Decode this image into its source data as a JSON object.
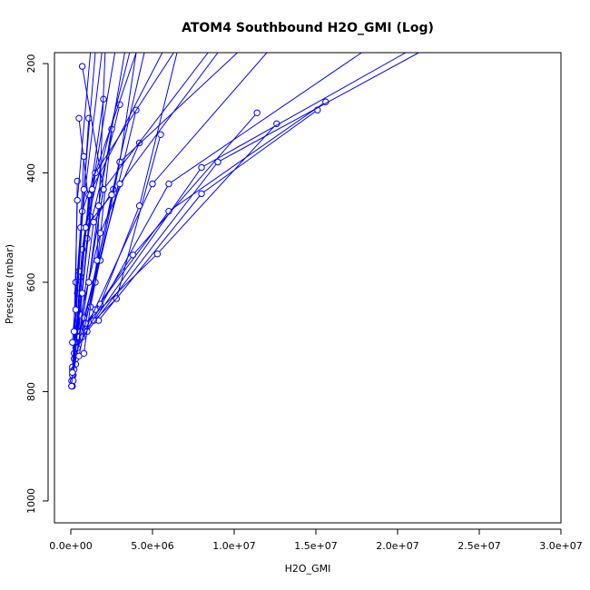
{
  "chart_data": {
    "type": "line",
    "title": "ATOM4 Southbound H2O_GMI (Log)",
    "xlabel": "H2O_GMI",
    "ylabel": "Pressure (mbar)",
    "xlim": [
      -1000000.0,
      30000000.0
    ],
    "ylim": [
      1040,
      180
    ],
    "x_ticks": [
      0,
      5000000,
      10000000,
      15000000,
      20000000,
      25000000,
      30000000
    ],
    "x_tick_labels": [
      "0.0e+00",
      "5.0e+06",
      "1.0e+07",
      "1.5e+07",
      "2.0e+07",
      "2.5e+07",
      "3.0e+07"
    ],
    "y_ticks": [
      200,
      400,
      600,
      800,
      1000
    ],
    "y_tick_labels": [
      "200",
      "400",
      "600",
      "800",
      "1000"
    ],
    "y_axis_reversed": true,
    "grid": false,
    "marker": "open-circle",
    "series_color": "#0000ff",
    "series": [
      {
        "x": [
          50000,
          2000000,
          700000
        ],
        "y": [
          790,
          430,
          205
        ]
      },
      {
        "x": [
          150000,
          1200000,
          500000
        ],
        "y": [
          770,
          480,
          300
        ]
      },
      {
        "x": [
          300000,
          1000000,
          3000000
        ],
        "y": [
          750,
          520,
          275
        ]
      },
      {
        "x": [
          200000,
          1800000,
          4000000
        ],
        "y": [
          730,
          560,
          285
        ]
      },
      {
        "x": [
          100000,
          1500000,
          2500000
        ],
        "y": [
          760,
          600,
          320
        ]
      },
      {
        "x": [
          400000,
          2800000,
          5500000
        ],
        "y": [
          700,
          630,
          330
        ]
      },
      {
        "x": [
          600000,
          3800000,
          11400000
        ],
        "y": [
          690,
          550,
          290
        ]
      },
      {
        "x": [
          900000,
          5300000,
          12600000
        ],
        "y": [
          675,
          548,
          310
        ]
      },
      {
        "x": [
          1700000,
          8000000,
          15100000
        ],
        "y": [
          670,
          438,
          285
        ]
      },
      {
        "x": [
          1500000,
          6000000,
          15600000
        ],
        "y": [
          650,
          470,
          270
        ]
      },
      {
        "x": [
          300000,
          600000,
          1200000
        ],
        "y": [
          720,
          590,
          440
        ]
      },
      {
        "x": [
          50000,
          400000,
          800000
        ],
        "y": [
          780,
          620,
          370
        ]
      },
      {
        "x": [
          200000,
          700000,
          2000000
        ],
        "y": [
          740,
          540,
          265
        ]
      },
      {
        "x": [
          100000,
          500000,
          1100000
        ],
        "y": [
          755,
          580,
          300
        ]
      },
      {
        "x": [
          250000,
          900000,
          2500000
        ],
        "y": [
          710,
          500,
          440
        ]
      },
      {
        "x": [
          100000,
          300000,
          400000
        ],
        "y": [
          790,
          600,
          415
        ]
      },
      {
        "x": [
          600000,
          1800000,
          4200000
        ],
        "y": [
          660,
          510,
          345
        ]
      },
      {
        "x": [
          500000,
          1400000,
          2600000
        ],
        "y": [
          700,
          490,
          430
        ]
      },
      {
        "x": [
          1800000,
          4200000,
          6500000
        ],
        "y": [
          640,
          460,
          180
        ]
      },
      {
        "x": [
          1200000,
          3000000,
          4000000
        ],
        "y": [
          645,
          380,
          180
        ]
      },
      {
        "x": [
          800000,
          3000000,
          9000000
        ],
        "y": [
          665,
          420,
          180
        ]
      },
      {
        "x": [
          700000,
          5000000,
          12000000
        ],
        "y": [
          700,
          420,
          180
        ]
      },
      {
        "x": [
          1400000,
          8000000,
          20500000
        ],
        "y": [
          670,
          390,
          180
        ]
      },
      {
        "x": [
          1000000,
          9000000,
          21300000
        ],
        "y": [
          690,
          380,
          180
        ]
      },
      {
        "x": [
          400000,
          6000000,
          17800000
        ],
        "y": [
          720,
          420,
          180
        ]
      },
      {
        "x": [
          300000,
          3000000,
          10200000
        ],
        "y": [
          740,
          380,
          180
        ]
      },
      {
        "x": [
          200000,
          2000000,
          8400000
        ],
        "y": [
          760,
          430,
          180
        ]
      },
      {
        "x": [
          100000,
          1500000,
          6300000
        ],
        "y": [
          770,
          400,
          180
        ]
      },
      {
        "x": [
          150000,
          1100000,
          5600000
        ],
        "y": [
          780,
          440,
          180
        ]
      },
      {
        "x": [
          50000,
          700000,
          4000000
        ],
        "y": [
          790,
          470,
          180
        ]
      },
      {
        "x": [
          100000,
          900000,
          3600000
        ],
        "y": [
          765,
          500,
          180
        ]
      },
      {
        "x": [
          500000,
          2500000,
          4500000
        ],
        "y": [
          735,
          440,
          180
        ]
      },
      {
        "x": [
          800000,
          1600000,
          2100000
        ],
        "y": [
          730,
          560,
          180
        ]
      },
      {
        "x": [
          100000,
          600000,
          1900000
        ],
        "y": [
          710,
          500,
          180
        ]
      },
      {
        "x": [
          200000,
          400000,
          1200000
        ],
        "y": [
          690,
          450,
          180
        ]
      },
      {
        "x": [
          300000,
          800000,
          1500000
        ],
        "y": [
          650,
          430,
          180
        ]
      },
      {
        "x": [
          700000,
          1300000,
          2700000
        ],
        "y": [
          620,
          430,
          180
        ]
      },
      {
        "x": [
          1100000,
          1700000,
          3300000
        ],
        "y": [
          600,
          460,
          180
        ]
      }
    ]
  }
}
